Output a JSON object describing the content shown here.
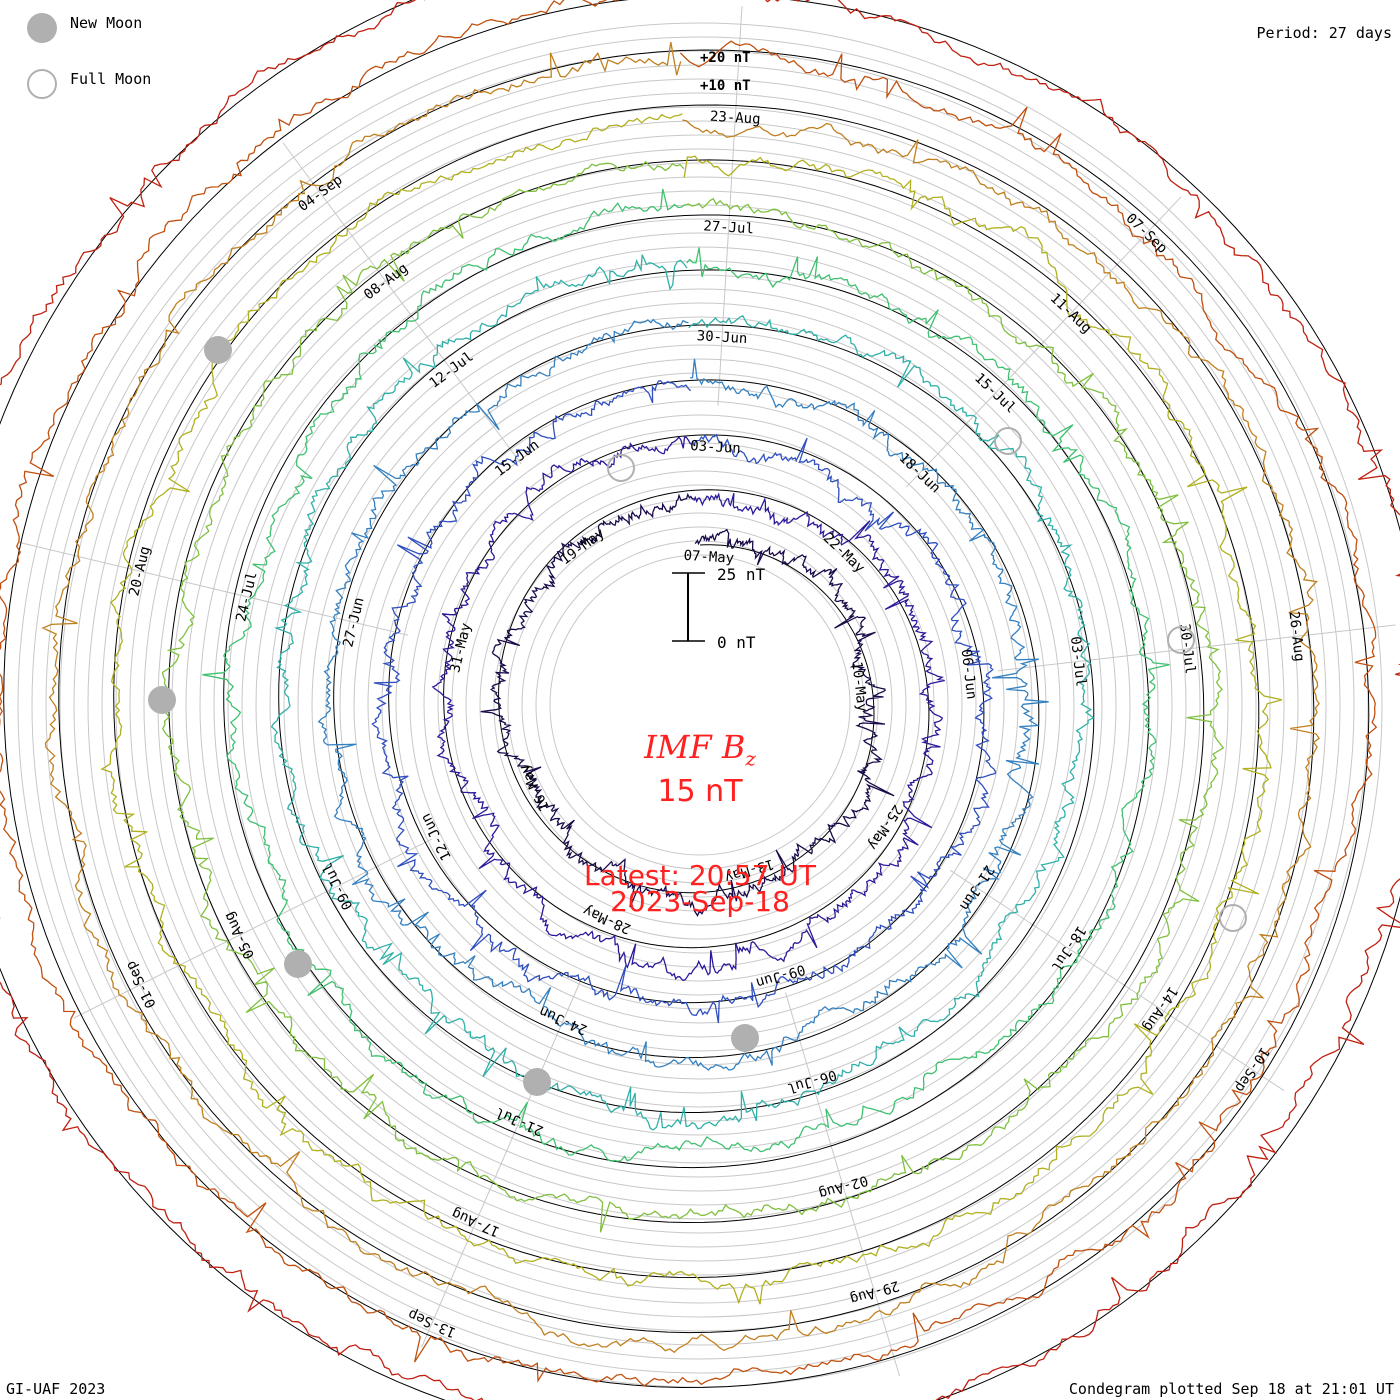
{
  "legend": {
    "new_moon_label": "New Moon",
    "full_moon_label": "Full Moon",
    "new_moon_color": "#b0b0b0",
    "full_moon_color": "#ffffff"
  },
  "period": "Period: 27 days",
  "footer_left": "GI-UAF 2023",
  "footer_right": "Condegram plotted Sep 18 at 21:01 UT",
  "center": {
    "title_main": "IMF B",
    "title_sub": "z",
    "value": "15 nT",
    "latest": "Latest: 20:57 UT",
    "date": "2023-Sep-18",
    "text_color": "#ff2020"
  },
  "chart_data": {
    "type": "line",
    "subtype": "spiral condegram",
    "title": "IMF Bz",
    "units": "nT",
    "period_days": 27,
    "scale_bar": {
      "top_label": "25 nT",
      "bottom_label": "0 nT",
      "top_value": 25,
      "bottom_value": 0
    },
    "reference_labels": [
      "+20 nT",
      "+10 nT"
    ],
    "turns": [
      {
        "index": 0,
        "color": "#1a0a4a"
      },
      {
        "index": 1,
        "color": "#2a1a9a"
      },
      {
        "index": 2,
        "color": "#2f4fc0"
      },
      {
        "index": 3,
        "color": "#3580c0"
      },
      {
        "index": 4,
        "color": "#30b0a8"
      },
      {
        "index": 5,
        "color": "#40c070"
      },
      {
        "index": 6,
        "color": "#80c040"
      },
      {
        "index": 7,
        "color": "#b0b020"
      },
      {
        "index": 8,
        "color": "#c08020"
      },
      {
        "index": 9,
        "color": "#c05010"
      },
      {
        "index": 10,
        "color": "#c02010"
      }
    ],
    "date_labels": [
      "07-May",
      "03-Jun",
      "30-Jun",
      "27-Jul",
      "23-Aug",
      "10-May",
      "06-Jun",
      "03-Jul",
      "30-Jul",
      "26-Aug",
      "13-May",
      "09-Jun",
      "06-Jul",
      "02-Aug",
      "29-Aug",
      "16-May",
      "12-Jun",
      "09-Jul",
      "05-Aug",
      "01-Sep",
      "19-May",
      "15-Jun",
      "12-Jul",
      "08-Aug",
      "04-Sep",
      "22-May",
      "18-Jun",
      "15-Jul",
      "11-Aug",
      "07-Sep",
      "25-May",
      "21-Jun",
      "18-Jul",
      "14-Aug",
      "10-Sep",
      "28-May",
      "24-Jun",
      "21-Jul",
      "17-Aug",
      "13-Sep",
      "31-May",
      "27-Jun",
      "24-Jul",
      "20-Aug"
    ],
    "latest_value": 15,
    "latest_time": "20:57 UT",
    "latest_date": "2023-Sep-18"
  }
}
